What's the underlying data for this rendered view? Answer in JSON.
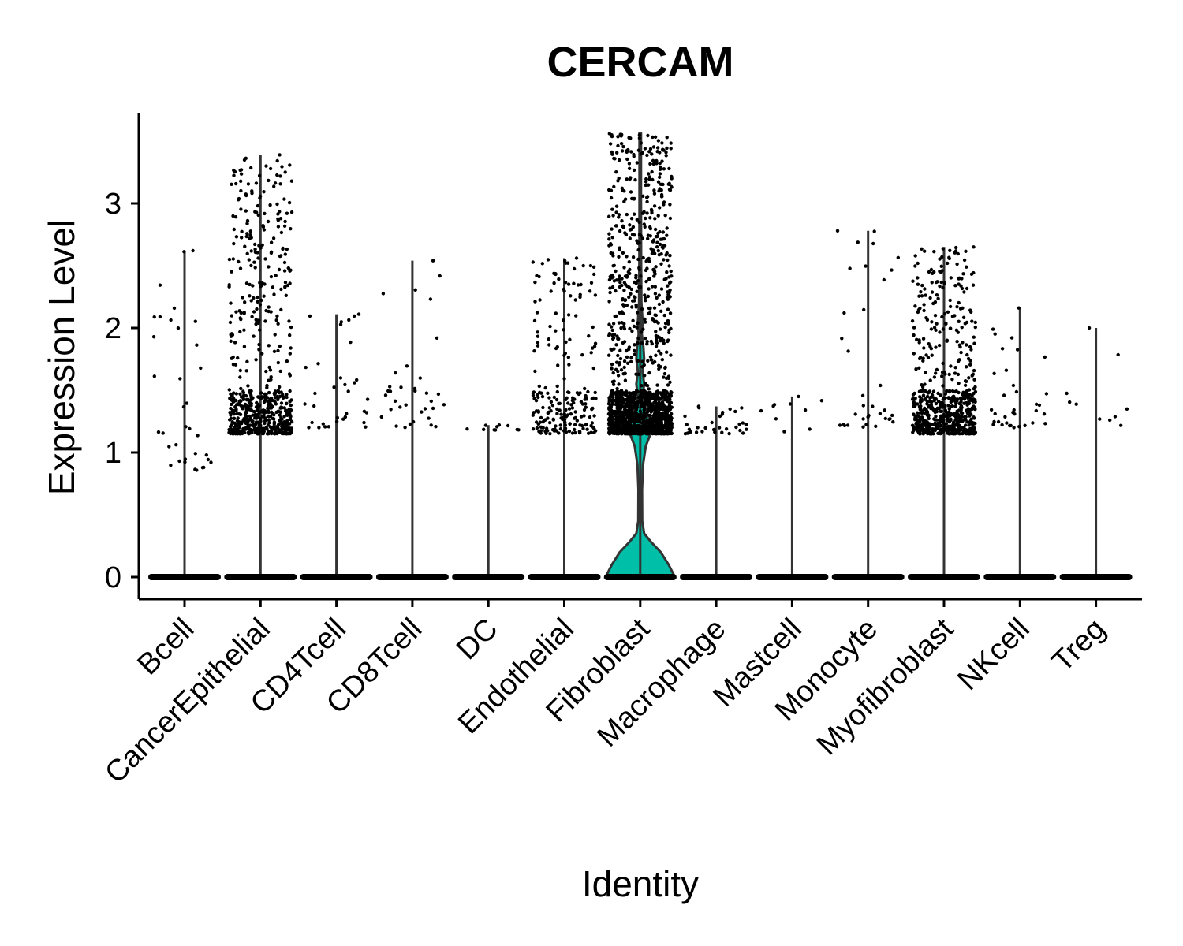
{
  "chart_data": {
    "type": "violin",
    "title": "CERCAM",
    "xlabel": "Identity",
    "ylabel": "Expression Level",
    "ylim": [
      -0.18,
      3.75
    ],
    "yticks": [
      0,
      1,
      2,
      3
    ],
    "grid": false,
    "legend": "none",
    "colors": {
      "fill": "#00BFA9",
      "outline": "#333333",
      "points": "#000000"
    },
    "categories": [
      "Bcell",
      "CancerEpithelial",
      "CD4Tcell",
      "CD8Tcell",
      "DC",
      "Endothelial",
      "Fibroblast",
      "Macrophage",
      "Mastcell",
      "Monocyte",
      "Myofibroblast",
      "NKcell",
      "Treg"
    ],
    "max_expression": [
      2.62,
      3.39,
      2.11,
      2.54,
      1.22,
      2.56,
      3.56,
      1.37,
      1.45,
      2.78,
      2.65,
      2.16,
      2.0
    ],
    "nonzero_ranges": [
      [
        0.85,
        2.62
      ],
      [
        1.15,
        3.39
      ],
      [
        1.2,
        2.11
      ],
      [
        1.2,
        2.54
      ],
      [
        1.18,
        1.22
      ],
      [
        1.15,
        2.56
      ],
      [
        1.15,
        3.56
      ],
      [
        1.15,
        1.37
      ],
      [
        1.15,
        1.45
      ],
      [
        1.2,
        2.78
      ],
      [
        1.15,
        2.65
      ],
      [
        1.2,
        2.16
      ],
      [
        1.2,
        2.0
      ]
    ],
    "nonzero_point_density": [
      "low",
      "high",
      "low",
      "low",
      "very-low",
      "medium",
      "very-high",
      "low",
      "very-low",
      "low",
      "high",
      "low",
      "very-low"
    ]
  }
}
